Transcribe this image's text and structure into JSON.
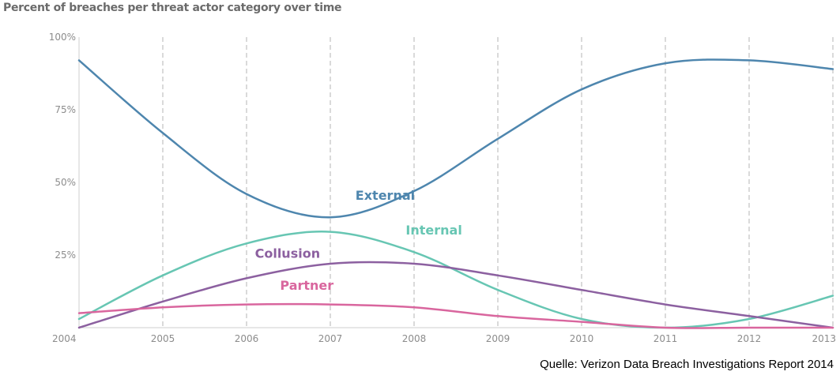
{
  "chart_data": {
    "type": "line",
    "title": "Percent of breaches per threat actor category over time",
    "xlabel": "",
    "ylabel": "",
    "xlim": [
      2004,
      2013
    ],
    "ylim": [
      0,
      100
    ],
    "x_ticks": [
      2004,
      2005,
      2006,
      2007,
      2008,
      2009,
      2010,
      2011,
      2012,
      2013
    ],
    "x_tick_labels": [
      "2004",
      "2005",
      "2006",
      "2007",
      "2008",
      "2009",
      "2010",
      "2011",
      "2012",
      "2013"
    ],
    "y_ticks": [
      25,
      50,
      75,
      100
    ],
    "y_tick_labels": [
      "25%",
      "50%",
      "75%",
      "100%"
    ],
    "grid": "vertical dashed",
    "legend": "inline labels",
    "series": [
      {
        "name": "External",
        "color": "#4e86ae",
        "x": [
          2004,
          2005,
          2006,
          2007,
          2008,
          2009,
          2010,
          2011,
          2012,
          2013
        ],
        "values": [
          92,
          67,
          46,
          38,
          47,
          65,
          82,
          91,
          92,
          89
        ],
        "label_at": [
          2007.3,
          44
        ]
      },
      {
        "name": "Internal",
        "color": "#67c6b3",
        "x": [
          2004,
          2005,
          2006,
          2007,
          2008,
          2009,
          2010,
          2011,
          2012,
          2013
        ],
        "values": [
          3,
          18,
          29,
          33,
          26,
          13,
          3,
          0,
          3,
          11
        ],
        "label_at": [
          2007.9,
          32
        ]
      },
      {
        "name": "Collusion",
        "color": "#8c60a0",
        "x": [
          2004,
          2005,
          2006,
          2007,
          2008,
          2009,
          2010,
          2011,
          2012,
          2013
        ],
        "values": [
          0,
          9,
          17,
          22,
          22,
          18,
          13,
          8,
          4,
          0
        ],
        "label_at": [
          2006.1,
          24
        ]
      },
      {
        "name": "Partner",
        "color": "#d9669e",
        "x": [
          2004,
          2005,
          2006,
          2007,
          2008,
          2009,
          2010,
          2011,
          2012,
          2013
        ],
        "values": [
          5,
          7,
          8,
          8,
          7,
          4,
          2,
          0,
          0,
          0
        ],
        "label_at": [
          2006.4,
          13
        ]
      }
    ]
  },
  "source": "Quelle: Verizon Data Breach Investigations Report 2014"
}
